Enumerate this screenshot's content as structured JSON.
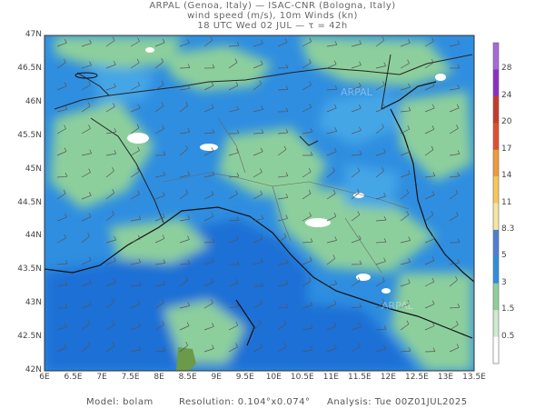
{
  "header": {
    "line1": "ARPAL (Genoa, Italy)  —  ISAC-CNR (Bologna, Italy)",
    "line2": "wind speed (m/s), 10m Winds (kn)",
    "line3": "18 UTC Wed 02 JUL  —  τ = 42h"
  },
  "map": {
    "lat_labels": [
      "47N",
      "46.5N",
      "46N",
      "45.5N",
      "45N",
      "44.5N",
      "44N",
      "43.5N",
      "43N",
      "42.5N",
      "42N"
    ],
    "lon_labels": [
      "6E",
      "6.5E",
      "7E",
      "7.5E",
      "8E",
      "8.5E",
      "9E",
      "9.5E",
      "10E",
      "10.5E",
      "11E",
      "11.5E",
      "12E",
      "12.5E",
      "13E",
      "13.5E"
    ],
    "watermark": "ARPAL",
    "colors": {
      "sea": "#1f6fd6",
      "mid_blue": "#2f8ee0",
      "light_blue": "#45a6e6",
      "green": "#8dcf9c",
      "pale_green": "#b9e1bb",
      "calm": "#ffffff",
      "land_olive": "#6a9a4a"
    }
  },
  "colorbar": {
    "labels": [
      "28",
      "24",
      "20",
      "17",
      "14",
      "11",
      "8.3",
      "5",
      "3",
      "1.5",
      "0.5"
    ],
    "colors": [
      "#a66ad8",
      "#8a30c4",
      "#c83a28",
      "#e0502e",
      "#f29a3a",
      "#f6c858",
      "#f4e6a2",
      "#4f7fd2",
      "#2f8ee0",
      "#8dcf9c",
      "#cfead0",
      "#ffffff"
    ]
  },
  "footer": {
    "model": "Model: bolam",
    "resolution": "Resolution: 0.104°x0.074°",
    "analysis": "Analysis: Tue 00Z01JUL2025"
  }
}
